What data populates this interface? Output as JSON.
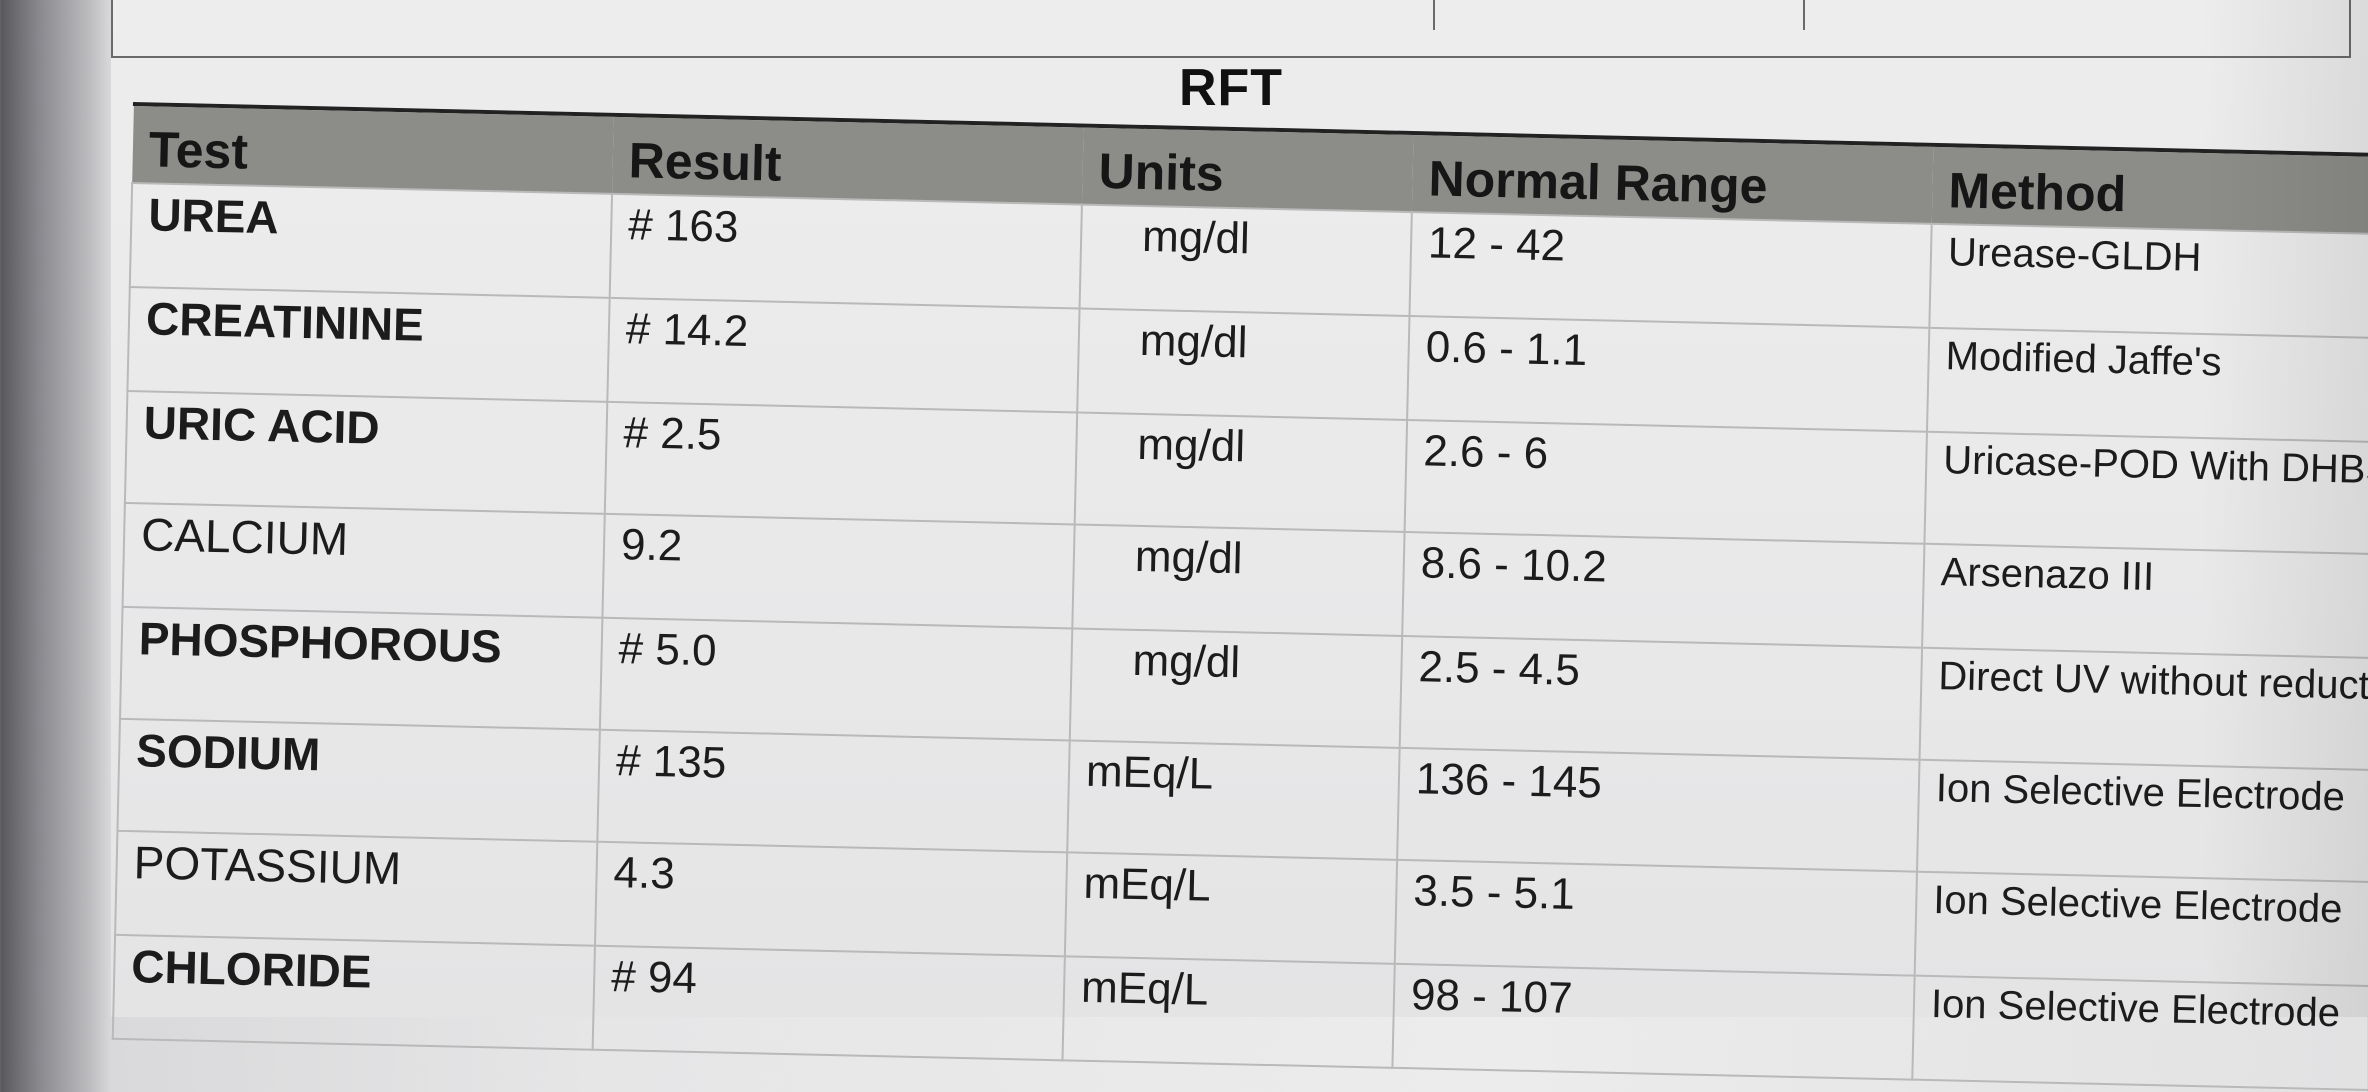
{
  "report": {
    "title": "RFT"
  },
  "table": {
    "headers": {
      "test": "Test",
      "result": "Result",
      "units": "Units",
      "normal_range": "Normal Range",
      "method": "Method"
    },
    "rows": [
      {
        "test": "UREA",
        "result": "# 163",
        "units": "mg/dl",
        "range": "12 - 42",
        "method": "Urease-GLDH"
      },
      {
        "test": "CREATININE",
        "result": "# 14.2",
        "units": "mg/dl",
        "range": "0.6 - 1.1",
        "method": "Modified Jaffe's"
      },
      {
        "test": "URIC ACID",
        "result": "# 2.5",
        "units": "mg/dl",
        "range": "2.6 - 6",
        "method": "Uricase-POD With DHBS"
      },
      {
        "test": "CALCIUM",
        "result": "9.2",
        "units": "mg/dl",
        "range": "8.6 - 10.2",
        "method": "Arsenazo  III"
      },
      {
        "test": "PHOSPHOROUS",
        "result": "# 5.0",
        "units": "mg/dl",
        "range": "2.5 - 4.5",
        "method": "Direct  UV  without reduction"
      },
      {
        "test": "SODIUM",
        "result": "# 135",
        "units": "mEq/L",
        "range": "136 - 145",
        "method": "Ion Selective Electrode"
      },
      {
        "test": "POTASSIUM",
        "result": "4.3",
        "units": "mEq/L",
        "range": "3.5 - 5.1",
        "method": "Ion Selective Electrode"
      },
      {
        "test": "CHLORIDE",
        "result": "# 94",
        "units": "mEq/L",
        "range": "98 - 107",
        "method": "Ion Selective Electrode"
      }
    ]
  }
}
